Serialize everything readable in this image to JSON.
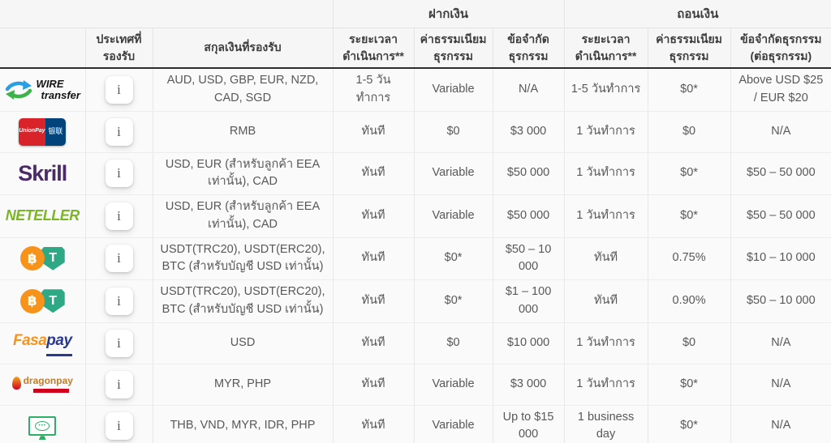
{
  "table": {
    "group_headers": {
      "deposit": "ฝากเงิน",
      "withdraw": "ถอนเงิน"
    },
    "column_headers": {
      "countries": "ประเทศที่รองรับ",
      "currencies": "สกุลเงินที่รองรับ",
      "deposit_time": "ระยะเวลาดำเนินการ**",
      "deposit_fee": "ค่าธรรมเนียมธุรกรรม",
      "deposit_limit": "ข้อจำกัดธุรกรรม",
      "withdraw_time": "ระยะเวลาดำเนินการ**",
      "withdraw_fee": "ค่าธรรมเนียมธุรกรรม",
      "withdraw_limit": "ข้อจำกัดธุรกรรม (ต่อธุรกรรม)"
    },
    "info_button_label": "i",
    "rows": [
      {
        "method": "WIRE transfer",
        "logo": "wire-transfer-logo",
        "currencies": "AUD, USD, GBP, EUR, NZD, CAD, SGD",
        "deposit": {
          "time": "1-5 วันทำการ",
          "fee": "Variable",
          "limit": "N/A"
        },
        "withdraw": {
          "time": "1-5 วันทำการ",
          "fee": "$0*",
          "limit": "Above USD $25 / EUR $20"
        }
      },
      {
        "method": "UnionPay",
        "logo": "unionpay-logo",
        "currencies": "RMB",
        "deposit": {
          "time": "ทันที",
          "fee": "$0",
          "limit": "$3 000"
        },
        "withdraw": {
          "time": "1 วันทำการ",
          "fee": "$0",
          "limit": "N/A"
        }
      },
      {
        "method": "Skrill",
        "logo": "skrill-logo",
        "currencies": "USD, EUR (สำหรับลูกค้า EEA เท่านั้น), CAD",
        "deposit": {
          "time": "ทันที",
          "fee": "Variable",
          "limit": "$50 000"
        },
        "withdraw": {
          "time": "1 วันทำการ",
          "fee": "$0*",
          "limit": "$50 – 50 000"
        }
      },
      {
        "method": "NETELLER",
        "logo": "neteller-logo",
        "currencies": "USD, EUR (สำหรับลูกค้า EEA เท่านั้น), CAD",
        "deposit": {
          "time": "ทันที",
          "fee": "Variable",
          "limit": "$50 000"
        },
        "withdraw": {
          "time": "1 วันทำการ",
          "fee": "$0*",
          "limit": "$50 – 50 000"
        }
      },
      {
        "method": "Bitcoin / USDT",
        "logo": "crypto-btc-usdt-logo",
        "currencies": "USDT(TRC20), USDT(ERC20), BTC (สำหรับบัญชี USD เท่านั้น)",
        "deposit": {
          "time": "ทันที",
          "fee": "$0*",
          "limit": "$50 – 10 000"
        },
        "withdraw": {
          "time": "ทันที",
          "fee": "0.75%",
          "limit": "$10 – 10 000"
        }
      },
      {
        "method": "Bitcoin / USDT",
        "logo": "crypto-btc-usdt-logo",
        "currencies": "USDT(TRC20), USDT(ERC20), BTC (สำหรับบัญชี USD เท่านั้น)",
        "deposit": {
          "time": "ทันที",
          "fee": "$0*",
          "limit": "$1 – 100 000"
        },
        "withdraw": {
          "time": "ทันที",
          "fee": "0.90%",
          "limit": "$50 – 10 000"
        }
      },
      {
        "method": "FasaPay",
        "logo": "fasapay-logo",
        "currencies": "USD",
        "deposit": {
          "time": "ทันที",
          "fee": "$0",
          "limit": "$10 000"
        },
        "withdraw": {
          "time": "1 วันทำการ",
          "fee": "$0",
          "limit": "N/A"
        }
      },
      {
        "method": "Dragonpay",
        "logo": "dragonpay-logo",
        "currencies": "MYR, PHP",
        "deposit": {
          "time": "ทันที",
          "fee": "Variable",
          "limit": "$3 000"
        },
        "withdraw": {
          "time": "1 วันทำการ",
          "fee": "$0*",
          "limit": "N/A"
        }
      },
      {
        "method": "Online Banking",
        "logo": "online-banking-logo",
        "currencies": "THB, VND, MYR, IDR, PHP",
        "deposit": {
          "time": "ทันที",
          "fee": "Variable",
          "limit": "Up to $15 000"
        },
        "withdraw": {
          "time": "1 business day",
          "fee": "$0*",
          "limit": "N/A"
        }
      }
    ]
  },
  "colors": {
    "header_bg": "#f6f6f6",
    "row_bg": "#fafafa",
    "header_divider": "#2e2e2e",
    "bitcoin_orange": "#f7931a",
    "tether_green": "#2fa985",
    "skrill_purple": "#4a2a67",
    "neteller_green": "#7db529",
    "unionpay_red": "#d8232a",
    "unionpay_blue": "#01447c",
    "fasapay_orange": "#f7941e",
    "fasapay_blue": "#2a3990",
    "dragonpay_red": "#d0021b",
    "banking_green": "#2fae66"
  }
}
